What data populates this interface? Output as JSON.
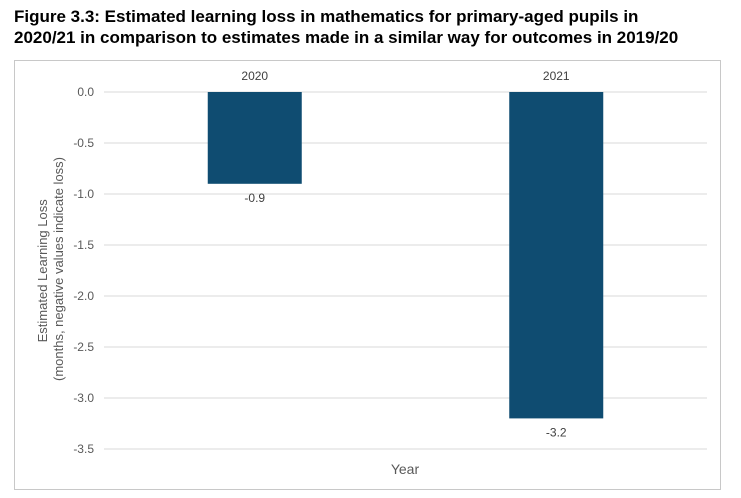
{
  "chart_data": {
    "type": "bar",
    "title_lines": [
      "Figure 3.3: Estimated learning loss in mathematics for primary-aged pupils in",
      "2020/21 in comparison to estimates made in a similar way for outcomes in 2019/20"
    ],
    "categories": [
      "2020",
      "2021"
    ],
    "values": [
      -0.9,
      -3.2
    ],
    "data_labels": [
      "-0.9",
      "-3.2"
    ],
    "xlabel": "Year",
    "ylabel_lines": [
      "Estimated Learning Loss",
      "(months, negative values indicate loss)"
    ],
    "ylim": [
      -3.5,
      0.0
    ],
    "yticks": [
      "0.0",
      "-0.5",
      "-1.0",
      "-1.5",
      "-2.0",
      "-2.5",
      "-3.0",
      "-3.5"
    ],
    "grid": true,
    "category_labels_position": "top",
    "bar_color": "#0f4c71"
  }
}
